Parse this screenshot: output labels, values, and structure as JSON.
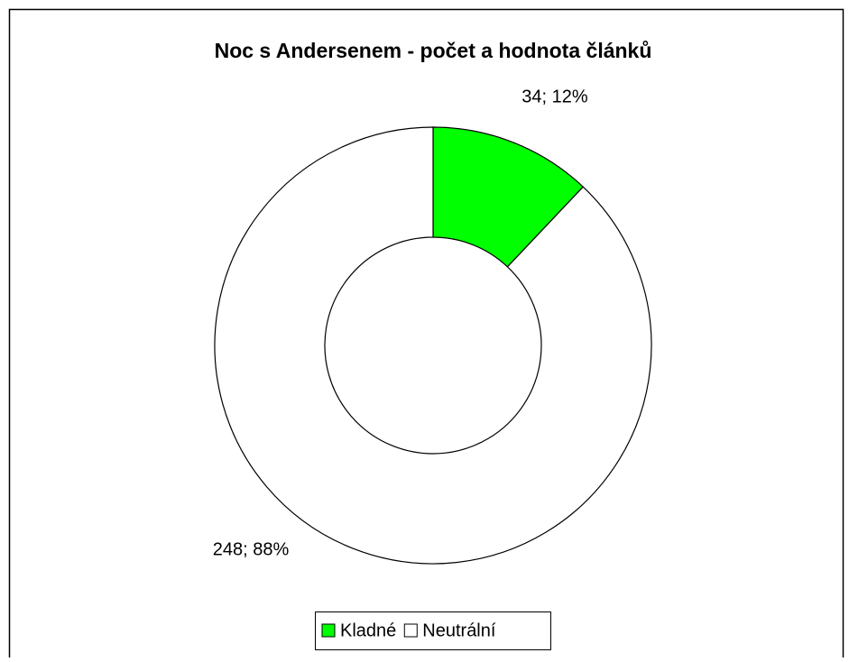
{
  "chart_data": {
    "type": "donut",
    "title": "Noc s Andersenem - počet a hodnota článků",
    "categories": [
      "Kladné",
      "Neutrální"
    ],
    "values": [
      34,
      248
    ],
    "value_labels": [
      "34; 12%",
      "248; 88%"
    ],
    "colors": [
      "#00ff00",
      "#ffffff"
    ],
    "legend": "bottom"
  }
}
